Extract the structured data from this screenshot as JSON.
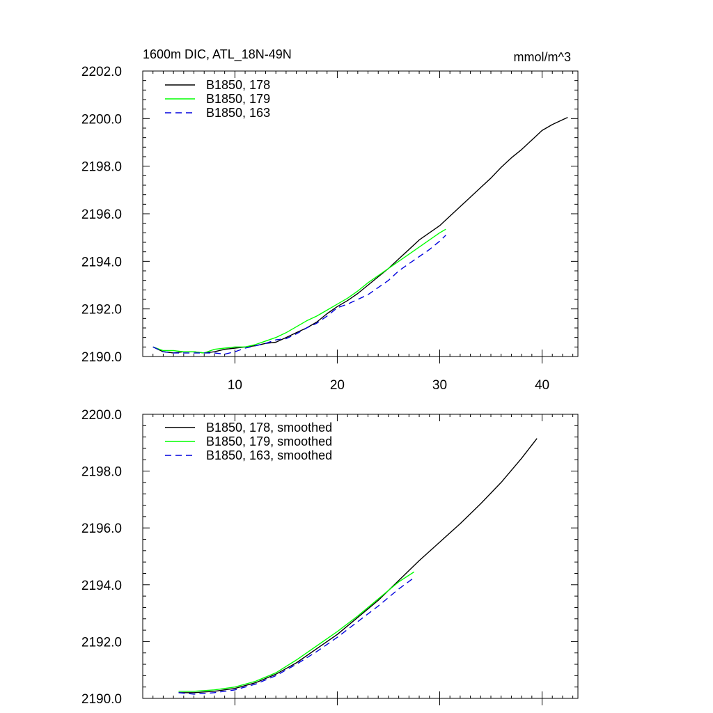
{
  "chart_data": [
    {
      "type": "line",
      "title": "1600m DIC, ATL_18N-49N",
      "units_label": "mmol/m^3",
      "xlim": [
        1,
        43.5
      ],
      "ylim": [
        2190,
        2202
      ],
      "xticks": [
        10,
        20,
        30,
        40
      ],
      "xtick_labels": [
        "10",
        "20",
        "30",
        "40"
      ],
      "yticks": [
        2190,
        2192,
        2194,
        2196,
        2198,
        2200,
        2202
      ],
      "ytick_labels": [
        "2190.0",
        "2192.0",
        "2194.0",
        "2196.0",
        "2198.0",
        "2200.0",
        "2202.0"
      ],
      "legend_position": "top-left",
      "series": [
        {
          "name": "B1850, 178",
          "color": "#000000",
          "dash": "solid",
          "x": [
            2,
            3,
            4,
            5,
            6,
            7,
            8,
            9,
            10,
            11,
            12,
            13,
            14,
            15,
            16,
            17,
            18,
            19,
            20,
            21,
            22,
            23,
            24,
            25,
            26,
            27,
            28,
            29,
            30,
            31,
            32,
            33,
            34,
            35,
            36,
            37,
            38,
            39,
            40,
            41,
            42,
            42.5
          ],
          "y": [
            2190.4,
            2190.2,
            2190.15,
            2190.2,
            2190.2,
            2190.15,
            2190.2,
            2190.3,
            2190.35,
            2190.4,
            2190.45,
            2190.55,
            2190.6,
            2190.8,
            2191.0,
            2191.2,
            2191.45,
            2191.8,
            2192.1,
            2192.35,
            2192.65,
            2193.0,
            2193.35,
            2193.7,
            2194.1,
            2194.5,
            2194.9,
            2195.2,
            2195.5,
            2195.9,
            2196.3,
            2196.7,
            2197.1,
            2197.5,
            2197.95,
            2198.35,
            2198.7,
            2199.1,
            2199.5,
            2199.75,
            2199.95,
            2200.05
          ]
        },
        {
          "name": "B1850, 179",
          "color": "#00ff00",
          "dash": "solid",
          "x": [
            2,
            3,
            4,
            5,
            6,
            7,
            8,
            9,
            10,
            11,
            12,
            13,
            14,
            15,
            16,
            17,
            18,
            19,
            20,
            21,
            22,
            23,
            24,
            25,
            26,
            27,
            28,
            29,
            30,
            30.6
          ],
          "y": [
            2190.4,
            2190.25,
            2190.25,
            2190.2,
            2190.2,
            2190.15,
            2190.3,
            2190.35,
            2190.4,
            2190.4,
            2190.5,
            2190.65,
            2190.8,
            2191.0,
            2191.25,
            2191.5,
            2191.7,
            2191.95,
            2192.2,
            2192.45,
            2192.75,
            2193.1,
            2193.4,
            2193.7,
            2194.0,
            2194.3,
            2194.6,
            2194.9,
            2195.2,
            2195.35
          ]
        },
        {
          "name": "B1850, 163",
          "color": "#0000dd",
          "dash": "dashed",
          "x": [
            2,
            3,
            4,
            5,
            6,
            7,
            8,
            9,
            10,
            11,
            12,
            13,
            14,
            15,
            16,
            17,
            18,
            19,
            20,
            21,
            22,
            23,
            24,
            25,
            26,
            27,
            28,
            29,
            30,
            30.6
          ],
          "y": [
            2190.4,
            2190.2,
            2190.15,
            2190.15,
            2190.15,
            2190.15,
            2190.15,
            2190.1,
            2190.2,
            2190.35,
            2190.45,
            2190.55,
            2190.7,
            2190.75,
            2190.95,
            2191.2,
            2191.4,
            2191.7,
            2192.05,
            2192.2,
            2192.4,
            2192.6,
            2192.9,
            2193.2,
            2193.6,
            2193.9,
            2194.2,
            2194.5,
            2194.85,
            2195.1
          ]
        }
      ]
    },
    {
      "type": "line",
      "xlim": [
        1,
        43.5
      ],
      "ylim": [
        2190,
        2200
      ],
      "xticks": [
        10,
        20,
        30,
        40
      ],
      "yticks": [
        2190,
        2192,
        2194,
        2196,
        2198,
        2200
      ],
      "ytick_labels": [
        "2190.0",
        "2192.0",
        "2194.0",
        "2196.0",
        "2198.0",
        "2200.0"
      ],
      "legend_position": "top-left",
      "series": [
        {
          "name": "B1850, 178, smoothed",
          "color": "#000000",
          "dash": "solid",
          "x": [
            4.5,
            6,
            8,
            10,
            12,
            14,
            16,
            18,
            20,
            22,
            24,
            26,
            28,
            30,
            32,
            34,
            36,
            38,
            39.5
          ],
          "y": [
            2190.2,
            2190.2,
            2190.25,
            2190.35,
            2190.55,
            2190.85,
            2191.25,
            2191.75,
            2192.25,
            2192.85,
            2193.45,
            2194.15,
            2194.85,
            2195.5,
            2196.15,
            2196.85,
            2197.6,
            2198.45,
            2199.15
          ]
        },
        {
          "name": "B1850, 179, smoothed",
          "color": "#00ff00",
          "dash": "solid",
          "x": [
            4.5,
            6,
            8,
            10,
            12,
            14,
            16,
            18,
            20,
            22,
            24,
            26,
            27.5
          ],
          "y": [
            2190.25,
            2190.25,
            2190.3,
            2190.4,
            2190.6,
            2190.9,
            2191.35,
            2191.85,
            2192.35,
            2192.9,
            2193.5,
            2194.1,
            2194.45
          ]
        },
        {
          "name": "B1850, 163, smoothed",
          "color": "#0000dd",
          "dash": "dashed",
          "x": [
            4.5,
            6,
            8,
            10,
            12,
            14,
            16,
            18,
            20,
            22,
            24,
            26,
            27.5
          ],
          "y": [
            2190.2,
            2190.15,
            2190.2,
            2190.3,
            2190.5,
            2190.8,
            2191.2,
            2191.65,
            2192.15,
            2192.7,
            2193.25,
            2193.85,
            2194.25
          ]
        }
      ]
    }
  ]
}
